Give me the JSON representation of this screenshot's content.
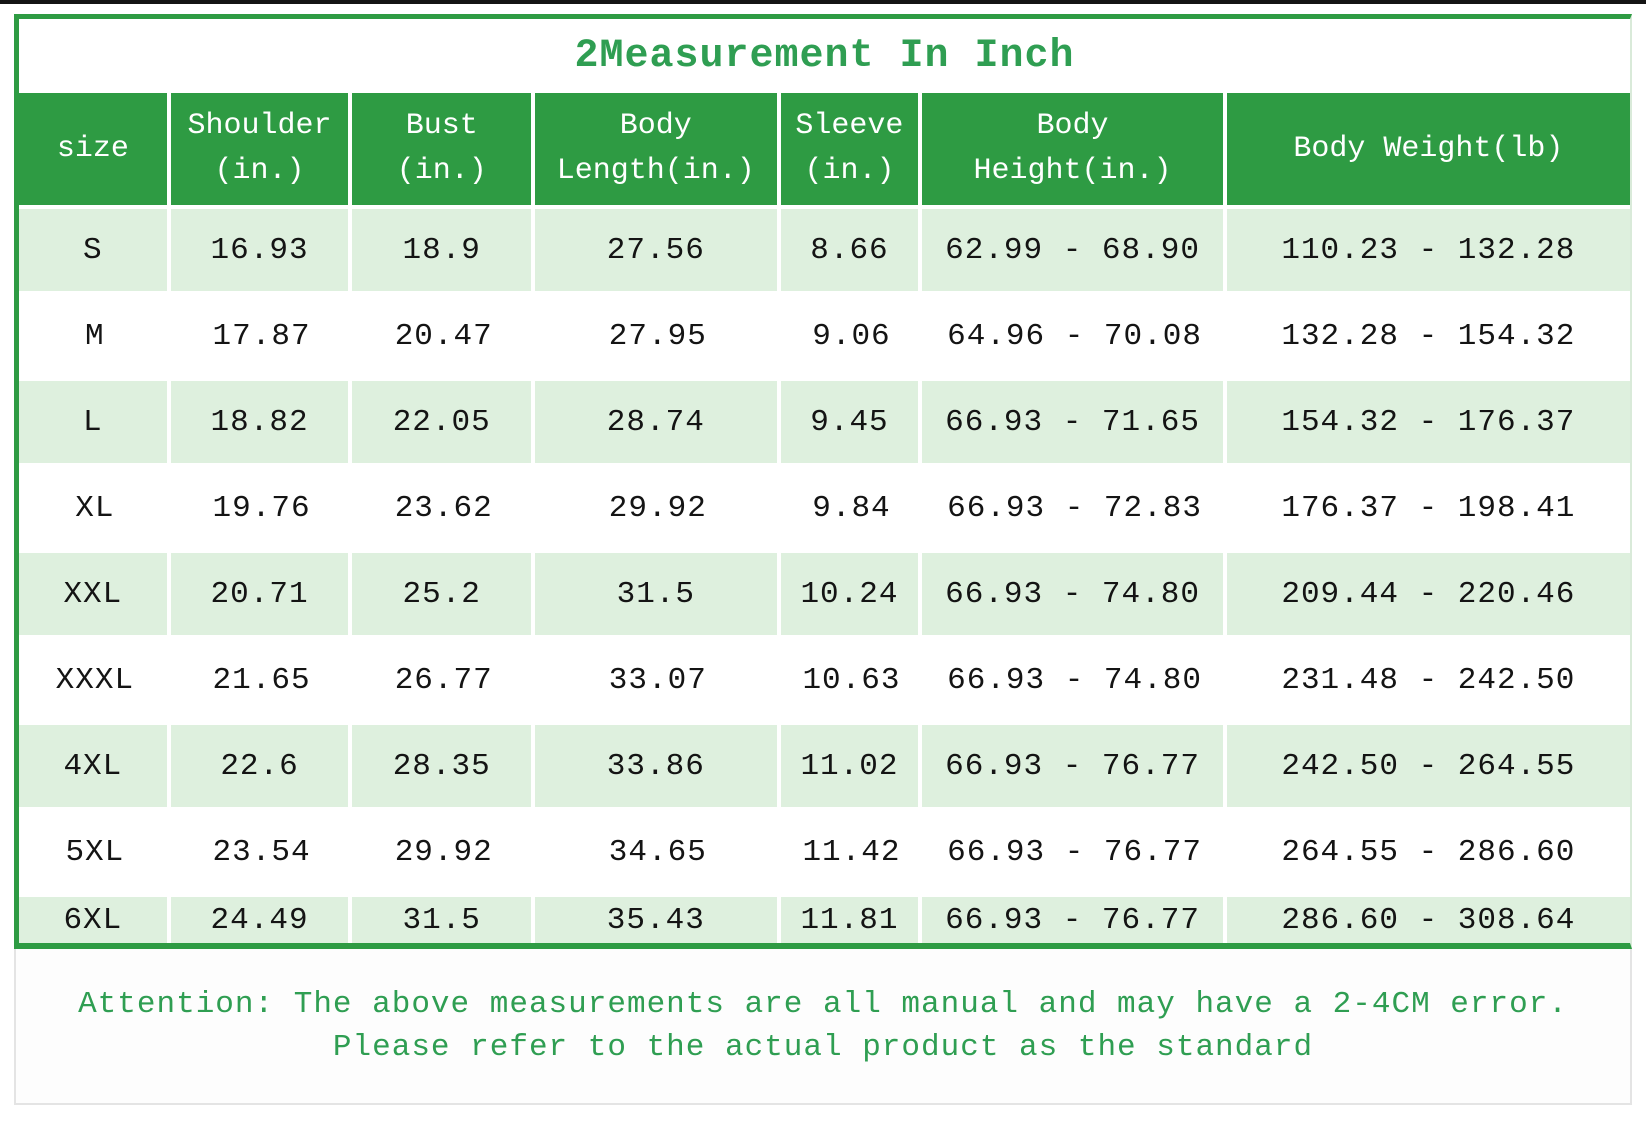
{
  "header": {
    "title": "2Measurement In Inch"
  },
  "table": {
    "header_lines": [
      [
        "size"
      ],
      [
        "Shoulder",
        "(in.)"
      ],
      [
        "Bust",
        "(in.)"
      ],
      [
        "Body",
        "Length(in.)"
      ],
      [
        "Sleeve",
        "(in.)"
      ],
      [
        "Body",
        "Height(in.)"
      ],
      [
        "Body Weight(lb)"
      ]
    ]
  },
  "chart_data": {
    "type": "table",
    "title": "2Measurement In Inch",
    "columns": [
      "size",
      "Shoulder (in.)",
      "Bust (in.)",
      "Body Length(in.)",
      "Sleeve (in.)",
      "Body Height(in.)",
      "Body Weight(lb)"
    ],
    "rows": [
      [
        "S",
        "16.93",
        "18.9",
        "27.56",
        "8.66",
        "62.99 - 68.90",
        "110.23 - 132.28"
      ],
      [
        "M",
        "17.87",
        "20.47",
        "27.95",
        "9.06",
        "64.96 - 70.08",
        "132.28 - 154.32"
      ],
      [
        "L",
        "18.82",
        "22.05",
        "28.74",
        "9.45",
        "66.93 - 71.65",
        "154.32 - 176.37"
      ],
      [
        "XL",
        "19.76",
        "23.62",
        "29.92",
        "9.84",
        "66.93 - 72.83",
        "176.37 - 198.41"
      ],
      [
        "XXL",
        "20.71",
        "25.2",
        "31.5",
        "10.24",
        "66.93 - 74.80",
        "209.44 - 220.46"
      ],
      [
        "XXXL",
        "21.65",
        "26.77",
        "33.07",
        "10.63",
        "66.93 - 74.80",
        "231.48 - 242.50"
      ],
      [
        "4XL",
        "22.6",
        "28.35",
        "33.86",
        "11.02",
        "66.93 - 76.77",
        "242.50 - 264.55"
      ],
      [
        "5XL",
        "23.54",
        "29.92",
        "34.65",
        "11.42",
        "66.93 - 76.77",
        "264.55 - 286.60"
      ],
      [
        "6XL",
        "24.49",
        "31.5",
        "35.43",
        "11.81",
        "66.93 - 76.77",
        "286.60 - 308.64"
      ]
    ],
    "layout": {
      "striped_rows": "odd rows light green, even rows white",
      "legend": "none",
      "grid": "white gutters between striped cells"
    }
  },
  "footer": {
    "line1": "Attention: The above measurements are all manual and may have a 2-4CM error.",
    "line2": "Please refer to the actual product as the standard"
  },
  "colors": {
    "header_green": "#2e9b43",
    "row_light_green": "#def0de",
    "text_green": "#2f9e52",
    "data_text": "#141414",
    "top_strip": "#141414"
  }
}
